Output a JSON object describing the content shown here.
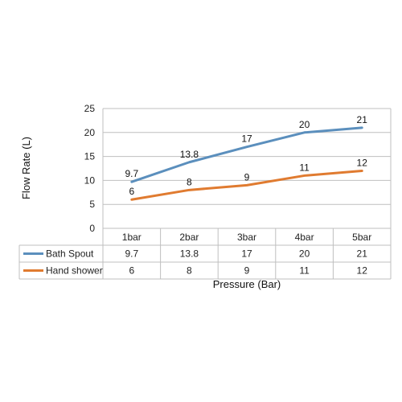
{
  "chart_data": {
    "type": "line",
    "title": "",
    "xlabel": "Pressure (Bar)",
    "ylabel": "Flow Rate (L)",
    "categories": [
      "1bar",
      "2bar",
      "3bar",
      "4bar",
      "5bar"
    ],
    "ylim": [
      0,
      25
    ],
    "yticks": [
      0,
      5,
      10,
      15,
      20,
      25
    ],
    "grid": true,
    "legend": "bottom data table",
    "series": [
      {
        "name": "Bath Spout",
        "color": "#5b8fbd",
        "values": [
          9.7,
          13.8,
          17,
          20,
          21
        ],
        "labels": [
          "9.7",
          "13.8",
          "17",
          "20",
          "21"
        ]
      },
      {
        "name": "Hand shower",
        "color": "#e07b30",
        "values": [
          6,
          8,
          9,
          11,
          12
        ],
        "labels": [
          "6",
          "8",
          "9",
          "11",
          "12"
        ]
      }
    ]
  }
}
